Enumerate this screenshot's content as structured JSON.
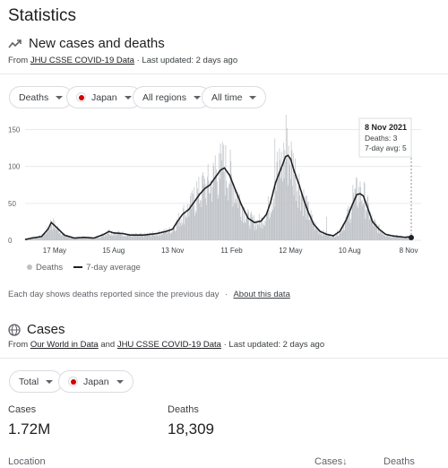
{
  "page": {
    "title": "Statistics"
  },
  "cases_deaths": {
    "heading": "New cases and deaths",
    "source_prefix": "From",
    "source_link": "JHU CSSE COVID-19 Data",
    "updated": "· Last updated: 2 days ago",
    "filters": {
      "metric": "Deaths",
      "country": "Japan",
      "region": "All regions",
      "range": "All time"
    },
    "legend": {
      "bars": "Deaths",
      "line": "7-day average"
    },
    "footnote": "Each day shows deaths reported since the previous day",
    "footnote_sep": "·",
    "footnote_link": "About this data",
    "tooltip": {
      "date": "8 Nov 2021",
      "deaths": "Deaths: 3",
      "avg": "7-day avg: 5"
    }
  },
  "cases": {
    "heading": "Cases",
    "source_prefix": "From",
    "source_link_1": "Our World in Data",
    "source_and": "and",
    "source_link_2": "JHU CSSE COVID-19 Data",
    "updated": "· Last updated: 2 days ago",
    "filters": {
      "scope": "Total",
      "country": "Japan"
    },
    "stats": {
      "cases_label": "Cases",
      "cases_value": "1.72M",
      "deaths_label": "Deaths",
      "deaths_value": "18,309"
    },
    "table": {
      "location": "Location",
      "cases": "Cases↓",
      "deaths": "Deaths"
    }
  },
  "colors": {
    "bar": "#bdc1c6",
    "line": "#202124",
    "grid": "#e8eaed",
    "flag_red": "#d40000"
  },
  "chart_data": {
    "type": "bar",
    "title": "",
    "xlabel": "",
    "ylabel": "",
    "ylim": [
      0,
      170
    ],
    "y_ticks": [
      0,
      50,
      100,
      150
    ],
    "x_ticks": [
      "17 May",
      "15 Aug",
      "13 Nov",
      "11 Feb",
      "12 May",
      "10 Aug",
      "8 Nov"
    ],
    "x_tick_index": [
      45,
      135,
      225,
      315,
      405,
      495,
      585
    ],
    "n_days": 590,
    "series": [
      {
        "name": "7-day average",
        "keypoints": [
          [
            0,
            1
          ],
          [
            10,
            3
          ],
          [
            25,
            5
          ],
          [
            35,
            15
          ],
          [
            40,
            24
          ],
          [
            45,
            20
          ],
          [
            52,
            14
          ],
          [
            60,
            7
          ],
          [
            75,
            3
          ],
          [
            90,
            4
          ],
          [
            105,
            3
          ],
          [
            120,
            8
          ],
          [
            128,
            12
          ],
          [
            135,
            10
          ],
          [
            150,
            9
          ],
          [
            160,
            7
          ],
          [
            180,
            7
          ],
          [
            200,
            9
          ],
          [
            215,
            12
          ],
          [
            225,
            15
          ],
          [
            232,
            25
          ],
          [
            240,
            35
          ],
          [
            250,
            42
          ],
          [
            258,
            52
          ],
          [
            266,
            62
          ],
          [
            274,
            70
          ],
          [
            282,
            75
          ],
          [
            290,
            85
          ],
          [
            298,
            95
          ],
          [
            304,
            98
          ],
          [
            312,
            88
          ],
          [
            320,
            70
          ],
          [
            330,
            48
          ],
          [
            340,
            30
          ],
          [
            350,
            24
          ],
          [
            360,
            26
          ],
          [
            368,
            35
          ],
          [
            374,
            50
          ],
          [
            382,
            78
          ],
          [
            388,
            92
          ],
          [
            393,
            103
          ],
          [
            397,
            113
          ],
          [
            401,
            115
          ],
          [
            405,
            110
          ],
          [
            410,
            95
          ],
          [
            418,
            75
          ],
          [
            425,
            55
          ],
          [
            432,
            38
          ],
          [
            440,
            22
          ],
          [
            450,
            12
          ],
          [
            460,
            8
          ],
          [
            470,
            6
          ],
          [
            480,
            12
          ],
          [
            490,
            28
          ],
          [
            500,
            50
          ],
          [
            506,
            62
          ],
          [
            511,
            63
          ],
          [
            516,
            60
          ],
          [
            522,
            45
          ],
          [
            530,
            25
          ],
          [
            540,
            15
          ],
          [
            550,
            8
          ],
          [
            560,
            6
          ],
          [
            570,
            5
          ],
          [
            580,
            4
          ],
          [
            589,
            5
          ]
        ]
      }
    ],
    "spikes": [
      [
        258,
        72
      ],
      [
        262,
        80
      ],
      [
        270,
        88
      ],
      [
        290,
        115
      ],
      [
        296,
        118
      ],
      [
        300,
        108
      ],
      [
        381,
        138
      ],
      [
        385,
        120
      ],
      [
        398,
        170
      ],
      [
        402,
        128
      ],
      [
        460,
        32
      ],
      [
        500,
        75
      ],
      [
        504,
        70
      ],
      [
        512,
        72
      ]
    ]
  }
}
